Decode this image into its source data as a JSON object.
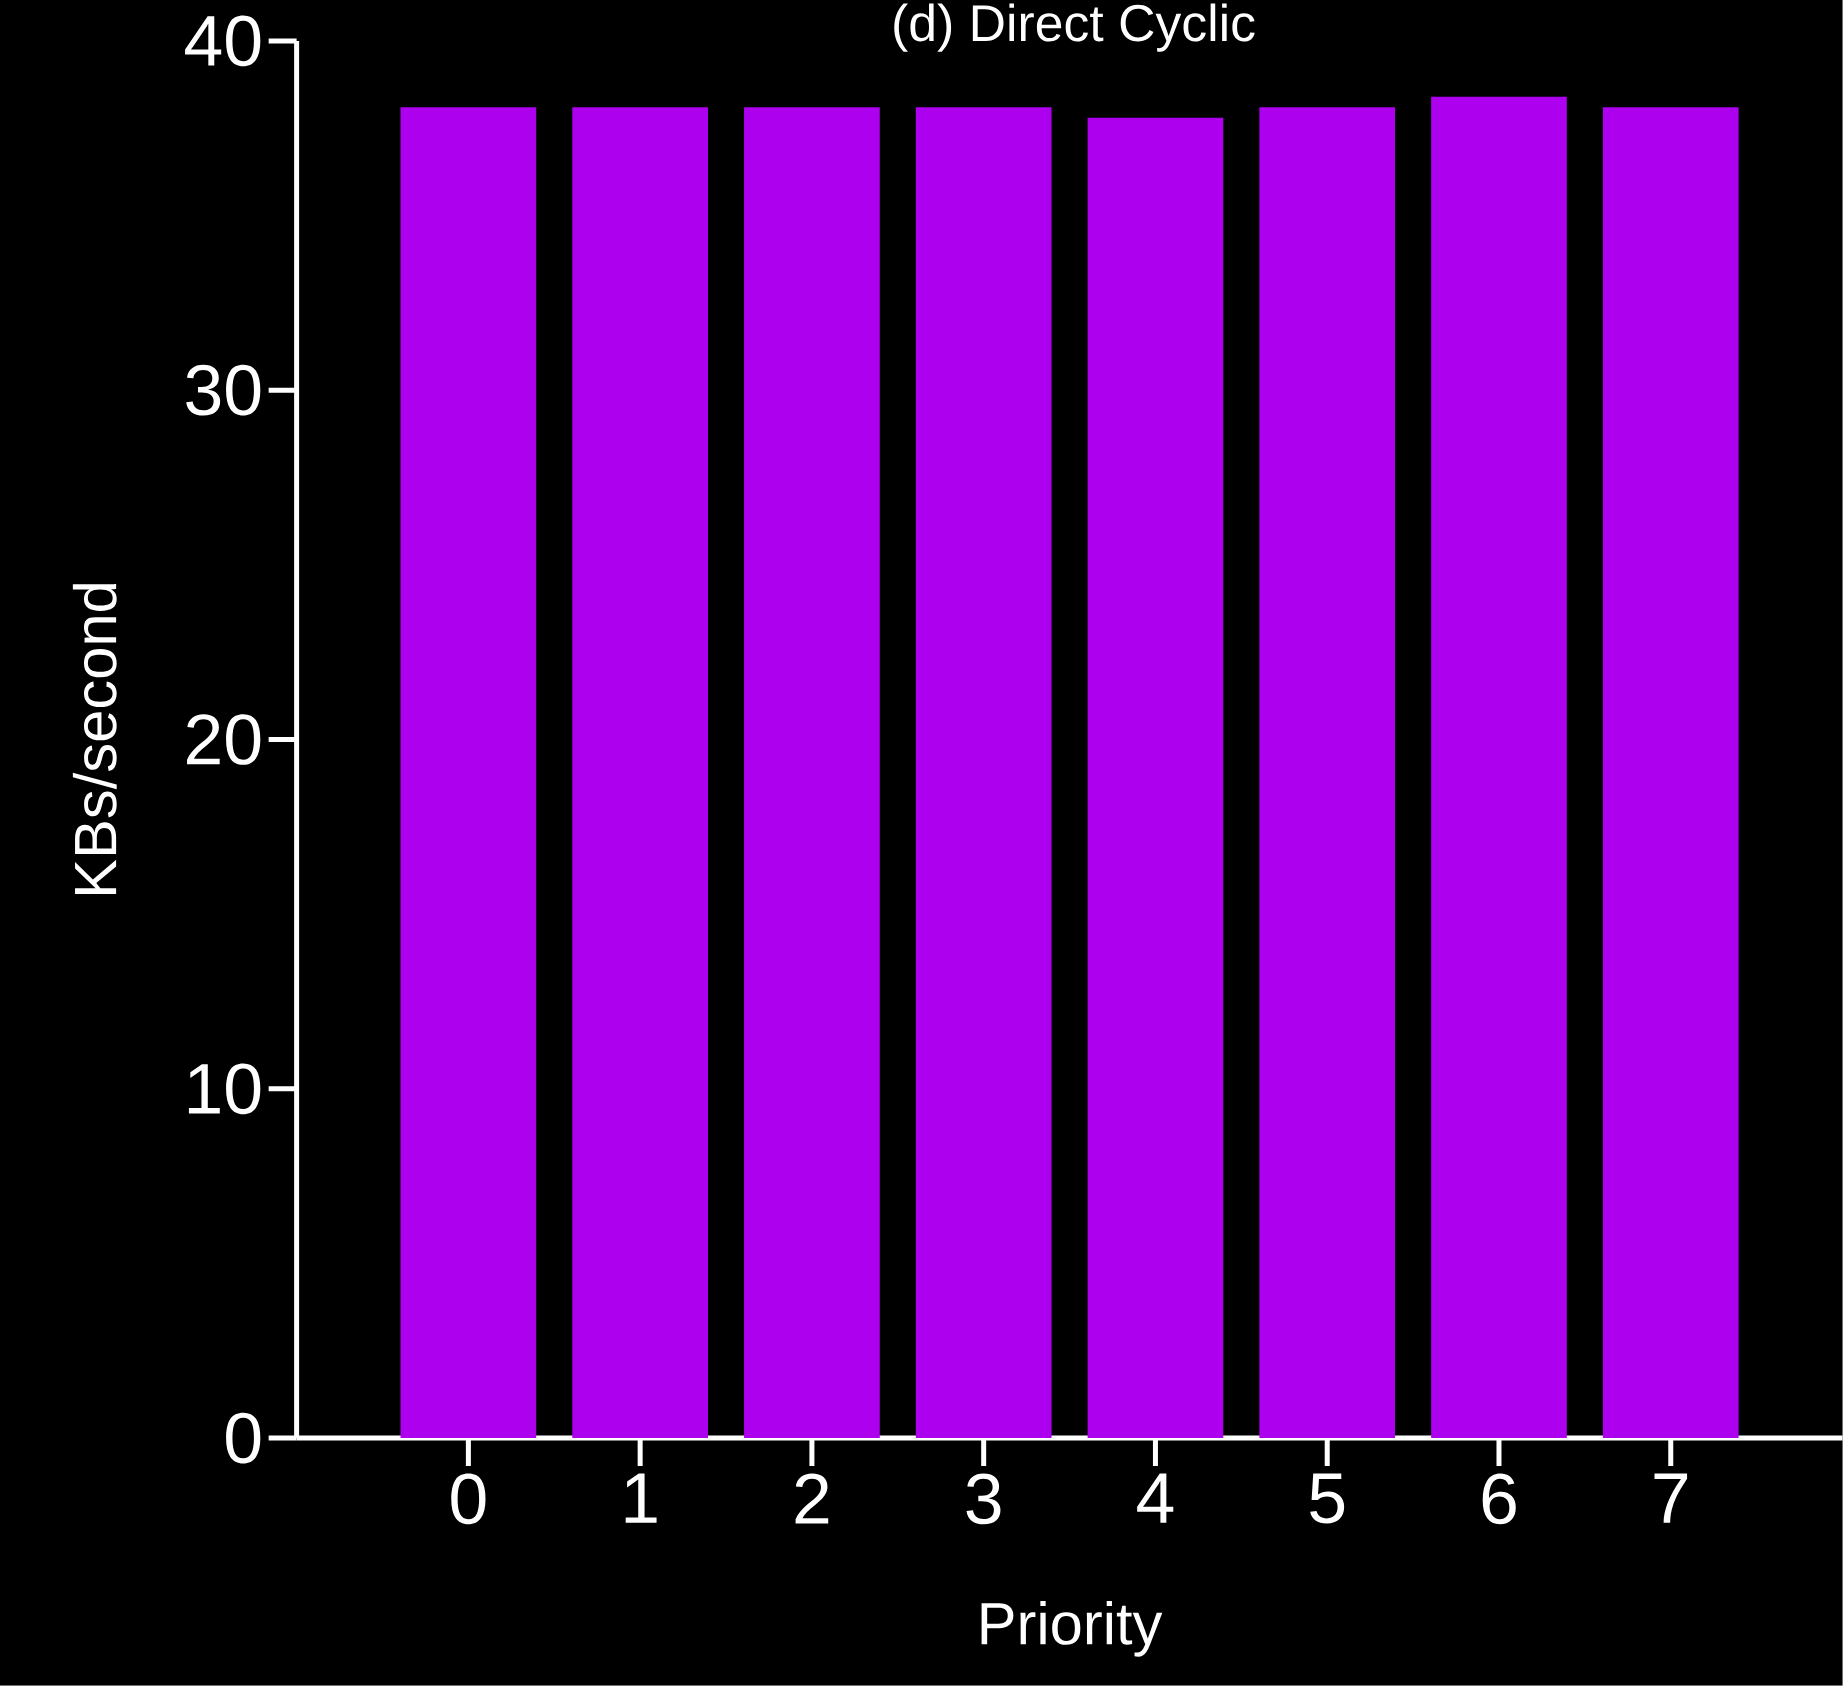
{
  "chart_data": {
    "type": "bar",
    "title": "(d) Direct Cyclic",
    "xlabel": "Priority",
    "ylabel": "KBs/second",
    "categories": [
      "0",
      "1",
      "2",
      "3",
      "4",
      "5",
      "6",
      "7"
    ],
    "values": [
      38.1,
      38.1,
      38.1,
      38.1,
      37.8,
      38.1,
      38.4,
      38.1
    ],
    "color": "#ad00ee",
    "ylim": [
      0,
      40
    ],
    "yticks": [
      0,
      10,
      20,
      30,
      40
    ]
  }
}
